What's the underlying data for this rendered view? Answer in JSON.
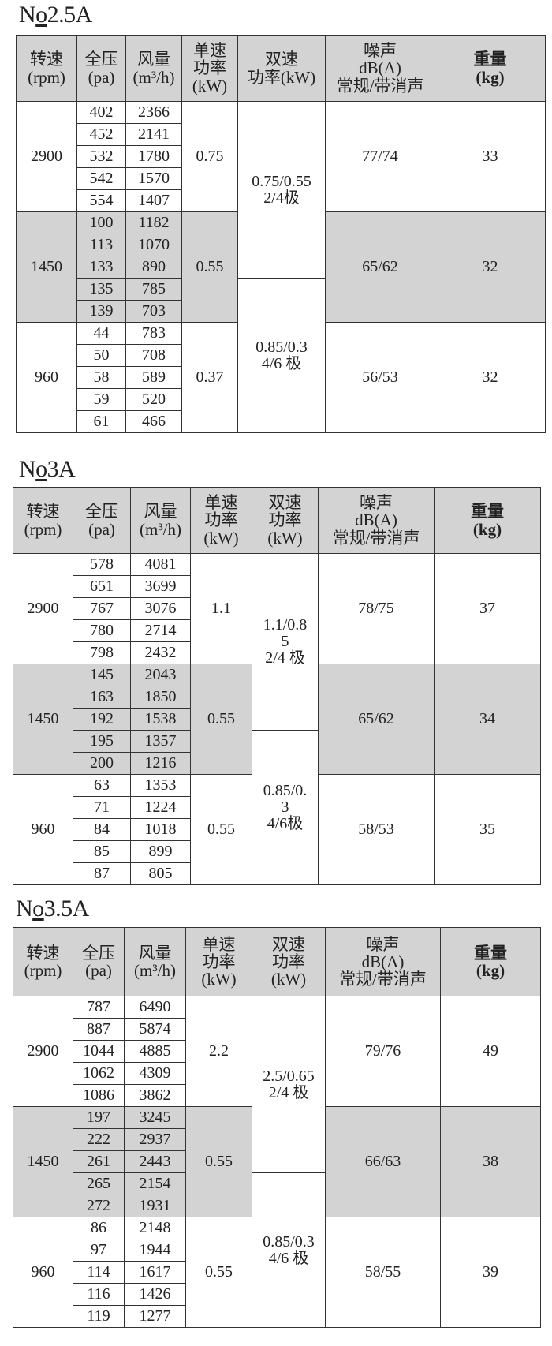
{
  "tables": [
    {
      "title_prefix": "N",
      "title_o": "o",
      "title_model": "2.5A",
      "headers": [
        "转速\n(rpm)",
        "全压\n(pa)",
        "风量\n(m³/h)",
        "单速\n功率\n(kW)",
        "双速\n功率(kW)",
        "噪声\ndB(A)\n常规/带消声",
        "重量\n(kg)"
      ],
      "groups": [
        {
          "rpm": "2900",
          "rows": [
            [
              "402",
              "2366"
            ],
            [
              "452",
              "2141"
            ],
            [
              "532",
              "1780"
            ],
            [
              "542",
              "1570"
            ],
            [
              "554",
              "1407"
            ]
          ],
          "single_power": "0.75",
          "noise": "77/74",
          "weight": "33",
          "shaded": false
        },
        {
          "rpm": "1450",
          "rows": [
            [
              "100",
              "1182"
            ],
            [
              "113",
              "1070"
            ],
            [
              "133",
              "890"
            ],
            [
              "135",
              "785"
            ],
            [
              "139",
              "703"
            ]
          ],
          "single_power": "0.55",
          "noise": "65/62",
          "weight": "32",
          "shaded": true
        },
        {
          "rpm": "960",
          "rows": [
            [
              "44",
              "783"
            ],
            [
              "50",
              "708"
            ],
            [
              "58",
              "589"
            ],
            [
              "59",
              "520"
            ],
            [
              "61",
              "466"
            ]
          ],
          "single_power": "0.37",
          "noise": "56/53",
          "weight": "32",
          "shaded": false
        }
      ],
      "dual_power": [
        "0.75/0.55\n2/4极",
        "0.85/0.3\n4/6 极"
      ]
    },
    {
      "title_prefix": "N",
      "title_o": "o",
      "title_model": "3A",
      "headers": [
        "转速\n(rpm)",
        "全压\n(pa)",
        "风量\n(m³/h)",
        "单速\n功率\n(kW)",
        "双速\n功率\n(kW)",
        "噪声\ndB(A)\n常规/带消声",
        "重量\n(kg)"
      ],
      "groups": [
        {
          "rpm": "2900",
          "rows": [
            [
              "578",
              "4081"
            ],
            [
              "651",
              "3699"
            ],
            [
              "767",
              "3076"
            ],
            [
              "780",
              "2714"
            ],
            [
              "798",
              "2432"
            ]
          ],
          "single_power": "1.1",
          "noise": "78/75",
          "weight": "37",
          "shaded": false
        },
        {
          "rpm": "1450",
          "rows": [
            [
              "145",
              "2043"
            ],
            [
              "163",
              "1850"
            ],
            [
              "192",
              "1538"
            ],
            [
              "195",
              "1357"
            ],
            [
              "200",
              "1216"
            ]
          ],
          "single_power": "0.55",
          "noise": "65/62",
          "weight": "34",
          "shaded": true
        },
        {
          "rpm": "960",
          "rows": [
            [
              "63",
              "1353"
            ],
            [
              "71",
              "1224"
            ],
            [
              "84",
              "1018"
            ],
            [
              "85",
              "899"
            ],
            [
              "87",
              "805"
            ]
          ],
          "single_power": "0.55",
          "noise": "58/53",
          "weight": "35",
          "shaded": false
        }
      ],
      "dual_power": [
        "1.1/0.8\n5\n2/4 极",
        "0.85/0.\n3\n4/6极"
      ]
    },
    {
      "title_prefix": "N",
      "title_o": "o",
      "title_model": "3.5A",
      "headers": [
        "转速\n(rpm)",
        "全压\n(pa)",
        "风量\n(m³/h)",
        "单速\n功率\n(kW)",
        "双速\n功率\n(kW)",
        "噪声\ndB(A)\n常规/带消声",
        "重量\n(kg)"
      ],
      "groups": [
        {
          "rpm": "2900",
          "rows": [
            [
              "787",
              "6490"
            ],
            [
              "887",
              "5874"
            ],
            [
              "1044",
              "4885"
            ],
            [
              "1062",
              "4309"
            ],
            [
              "1086",
              "3862"
            ]
          ],
          "single_power": "2.2",
          "noise": "79/76",
          "weight": "49",
          "shaded": false
        },
        {
          "rpm": "1450",
          "rows": [
            [
              "197",
              "3245"
            ],
            [
              "222",
              "2937"
            ],
            [
              "261",
              "2443"
            ],
            [
              "265",
              "2154"
            ],
            [
              "272",
              "1931"
            ]
          ],
          "single_power": "0.55",
          "noise": "66/63",
          "weight": "38",
          "shaded": true
        },
        {
          "rpm": "960",
          "rows": [
            [
              "86",
              "2148"
            ],
            [
              "97",
              "1944"
            ],
            [
              "114",
              "1617"
            ],
            [
              "116",
              "1426"
            ],
            [
              "119",
              "1277"
            ]
          ],
          "single_power": "0.55",
          "noise": "58/55",
          "weight": "39",
          "shaded": false
        }
      ],
      "dual_power": [
        "2.5/0.65\n2/4 极",
        "0.85/0.3\n4/6 极"
      ]
    }
  ]
}
